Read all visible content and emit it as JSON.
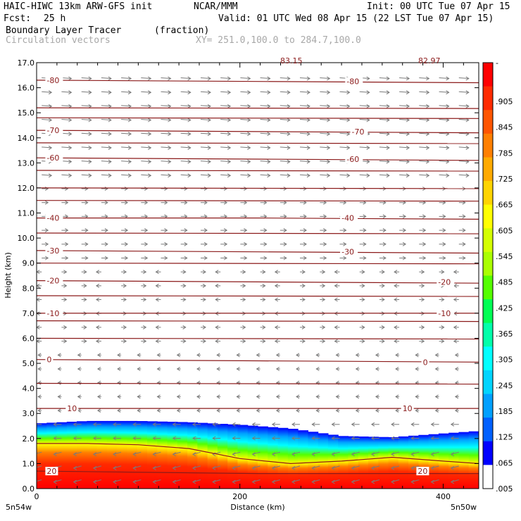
{
  "header": {
    "model": "HAIC-HIWC 13km ARW-GFS init",
    "org": "NCAR/MMM",
    "init": "Init: 00 UTC Tue 07 Apr 15",
    "fcst_label": "Fcst:",
    "fcst_value": "25 h",
    "valid": "Valid: 01 UTC Wed 08 Apr 15 (22 LST Tue 07 Apr 15)",
    "field": "Boundary Layer Tracer",
    "units": "(fraction)",
    "vectors": "Circulation vectors",
    "xy": "XY= 251.0,100.0 to 284.7,100.0",
    "top_note_1": "83.15",
    "top_note_2": "82.97"
  },
  "chart_data": {
    "type": "heatmap",
    "title": "Boundary Layer Tracer",
    "xlabel": "Distance (km)",
    "ylabel": "Height (km)",
    "xlim": [
      0,
      435
    ],
    "ylim": [
      0,
      17
    ],
    "x_ticks": [
      0,
      200,
      400
    ],
    "y_ticks": [
      0.0,
      1.0,
      2.0,
      3.0,
      4.0,
      5.0,
      6.0,
      7.0,
      8.0,
      9.0,
      10.0,
      11.0,
      12.0,
      13.0,
      14.0,
      15.0,
      16.0,
      17.0
    ],
    "x_endpoint_labels": [
      "5n54w",
      "5n50w"
    ],
    "colorbar_labels": [
      "-",
      ".905",
      ".845",
      ".785",
      ".725",
      ".665",
      ".605",
      ".545",
      ".485",
      ".425",
      ".365",
      ".305",
      ".245",
      ".185",
      ".125",
      ".065",
      ".005"
    ],
    "colorbar_colors": [
      "#ff0000",
      "#ff2a00",
      "#ff5500",
      "#ff7f00",
      "#ffaa00",
      "#ffd400",
      "#ffff00",
      "#d4ff00",
      "#aaff00",
      "#55ff00",
      "#00ff55",
      "#00ffaa",
      "#00ffff",
      "#00d4ff",
      "#00a0ff",
      "#0060ff",
      "#0000ff",
      "#ffffff"
    ],
    "temperature_contours": [
      {
        "label": "-80",
        "heights": [
          16.3,
          16.25,
          16.2
        ]
      },
      {
        "label": "-70",
        "heights": [
          14.3,
          14.25,
          14.2
        ]
      },
      {
        "label": "-60",
        "heights": [
          13.2,
          13.15,
          13.1
        ]
      },
      {
        "label": "-40",
        "heights": [
          10.8,
          10.8,
          10.75
        ]
      },
      {
        "label": "-30",
        "heights": [
          9.5,
          9.45,
          9.4
        ]
      },
      {
        "label": "-20",
        "heights": [
          8.3,
          8.25,
          8.2
        ]
      },
      {
        "label": "-10",
        "heights": [
          7.0,
          7.0,
          7.0
        ]
      },
      {
        "label": "0",
        "heights": [
          5.15,
          5.1,
          5.05
        ]
      },
      {
        "label": "10",
        "heights": [
          3.2,
          3.2,
          3.2
        ]
      },
      {
        "label": "20",
        "heights": [
          0.7,
          0.6,
          0.6
        ]
      }
    ],
    "unlabeled_contour_heights": [
      15.2,
      14.8,
      13.8,
      12.7,
      12.0,
      11.5,
      10.2,
      9.0,
      7.7,
      6.7,
      6.0,
      4.2
    ],
    "inline_contour_labels": [
      {
        "text": "-80",
        "x": 10,
        "y": 16.3
      },
      {
        "text": "-80",
        "x": 305,
        "y": 16.25
      },
      {
        "text": "-70",
        "x": 10,
        "y": 14.3
      },
      {
        "text": "-70",
        "x": 310,
        "y": 14.25
      },
      {
        "text": "-60",
        "x": 10,
        "y": 13.2
      },
      {
        "text": "-60",
        "x": 305,
        "y": 13.15
      },
      {
        "text": "-40",
        "x": 10,
        "y": 10.8
      },
      {
        "text": "-40",
        "x": 300,
        "y": 10.8
      },
      {
        "text": "-30",
        "x": 10,
        "y": 9.5
      },
      {
        "text": "-30",
        "x": 300,
        "y": 9.45
      },
      {
        "text": "-20",
        "x": 10,
        "y": 8.3
      },
      {
        "text": "-20",
        "x": 395,
        "y": 8.25
      },
      {
        "text": "-10",
        "x": 10,
        "y": 7.0
      },
      {
        "text": "-10",
        "x": 395,
        "y": 7.0
      },
      {
        "text": "0",
        "x": 10,
        "y": 5.15
      },
      {
        "text": "0",
        "x": 380,
        "y": 5.05
      },
      {
        "text": "10",
        "x": 30,
        "y": 3.2
      },
      {
        "text": "10",
        "x": 360,
        "y": 3.2
      },
      {
        "text": "20",
        "x": 10,
        "y": 0.7
      },
      {
        "text": "20",
        "x": 375,
        "y": 0.7
      }
    ],
    "tracer_layer": {
      "x": [
        0,
        50,
        100,
        150,
        200,
        250,
        300,
        350,
        400,
        435
      ],
      "top_height": [
        2.6,
        2.7,
        2.7,
        2.65,
        2.55,
        2.4,
        2.1,
        2.05,
        2.2,
        2.3
      ],
      "high_fraction_top": [
        1.8,
        1.8,
        1.75,
        1.6,
        1.2,
        1.0,
        1.1,
        1.25,
        1.1,
        1.0
      ]
    },
    "grid": false,
    "legend": "colorbar-right"
  }
}
